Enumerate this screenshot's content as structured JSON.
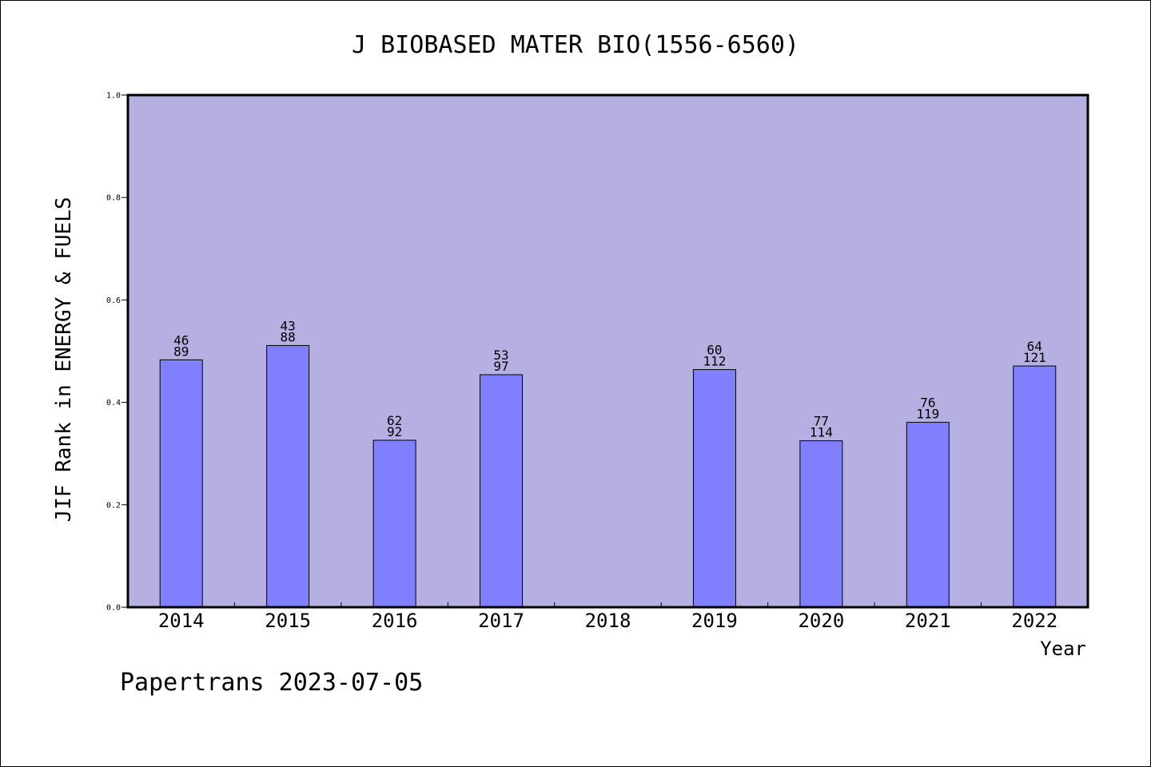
{
  "chart_data": {
    "type": "bar",
    "title": "J BIOBASED MATER BIO(1556-6560)",
    "xlabel": "Year",
    "ylabel": "JIF Rank in ENERGY & FUELS",
    "ylim": [
      0,
      1.0
    ],
    "yticks": [
      "0.0",
      "0.2",
      "0.4",
      "0.6",
      "0.8",
      "1.0"
    ],
    "categories": [
      "2014",
      "2015",
      "2016",
      "2017",
      "2018",
      "2019",
      "2020",
      "2021",
      "2022"
    ],
    "values": [
      0.483,
      0.511,
      0.326,
      0.454,
      null,
      0.464,
      0.325,
      0.361,
      0.471
    ],
    "rank": [
      "46",
      "43",
      "62",
      "53",
      "",
      "60",
      "77",
      "76",
      "64"
    ],
    "total": [
      "89",
      "88",
      "92",
      "97",
      "",
      "112",
      "114",
      "119",
      "121"
    ],
    "grid": false,
    "colors": {
      "plot_background": "#b6b0e2",
      "bar_fill": "#8080ff",
      "bar_stroke": "#000000"
    }
  },
  "footer": "Papertrans 2023-07-05"
}
